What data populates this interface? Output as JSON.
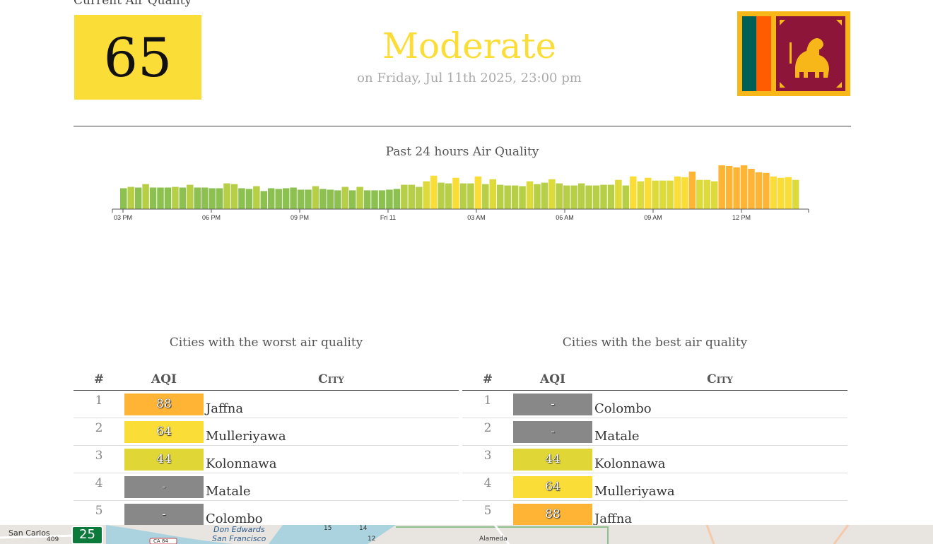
{
  "header": {
    "label": "Current Air Quality",
    "aqi": "65",
    "aqi_color": "#fbdd37",
    "status": "Moderate",
    "status_color": "#fbdd37",
    "date": "on Friday, Jul 11th 2025, 23:00 pm"
  },
  "chart_data": {
    "type": "bar",
    "title": "Past 24 hours Air Quality",
    "x_tick_labels": [
      "03 PM",
      "06 PM",
      "09 PM",
      "Fri 11",
      "03 AM",
      "06 AM",
      "09 AM",
      "12 PM"
    ],
    "values": [
      30,
      32,
      31,
      36,
      31,
      31,
      31,
      32,
      31,
      35,
      31,
      31,
      30,
      30,
      37,
      36,
      30,
      29,
      33,
      26,
      30,
      29,
      30,
      31,
      28,
      28,
      33,
      29,
      28,
      27,
      32,
      27,
      32,
      27,
      27,
      27,
      28,
      29,
      35,
      35,
      32,
      40,
      48,
      38,
      37,
      45,
      37,
      37,
      47,
      36,
      43,
      35,
      34,
      34,
      33,
      40,
      36,
      38,
      43,
      37,
      34,
      34,
      37,
      34,
      34,
      35,
      35,
      42,
      34,
      47,
      40,
      45,
      41,
      41,
      41,
      47,
      46,
      54,
      42,
      42,
      40,
      63,
      62,
      60,
      63,
      58,
      53,
      52,
      47,
      45,
      46,
      42
    ],
    "bar_colors": {
      "good": "#8cc152",
      "green_yellow": "#b7cf47",
      "yellow_green": "#dcdb3b",
      "moderate": "#fbdd37",
      "usg": "#ffb436"
    }
  },
  "worst": {
    "title": "Cities with the worst air quality",
    "headers": [
      "#",
      "AQI",
      "City"
    ],
    "rows": [
      {
        "rank": "1",
        "aqi": "88",
        "city": "Jaffna",
        "color": "#ffb436"
      },
      {
        "rank": "2",
        "aqi": "64",
        "city": "Mulleriyawa",
        "color": "#fbdd37"
      },
      {
        "rank": "3",
        "aqi": "44",
        "city": "Kolonnawa",
        "color": "#e0d636"
      },
      {
        "rank": "4",
        "aqi": "-",
        "city": "Matale",
        "color": "#888888"
      },
      {
        "rank": "5",
        "aqi": "-",
        "city": "Colombo",
        "color": "#888888"
      }
    ]
  },
  "best": {
    "title": "Cities with the best air quality",
    "headers": [
      "#",
      "AQI",
      "City"
    ],
    "rows": [
      {
        "rank": "1",
        "aqi": "-",
        "city": "Colombo",
        "color": "#888888"
      },
      {
        "rank": "2",
        "aqi": "-",
        "city": "Matale",
        "color": "#888888"
      },
      {
        "rank": "3",
        "aqi": "44",
        "city": "Kolonnawa",
        "color": "#e0d636"
      },
      {
        "rank": "4",
        "aqi": "64",
        "city": "Mulleriyawa",
        "color": "#fbdd37"
      },
      {
        "rank": "5",
        "aqi": "88",
        "city": "Jaffna",
        "color": "#ffb436"
      }
    ]
  },
  "map": {
    "labels": [
      "San Carlos",
      "25",
      "Don Edwards",
      "San Francisco",
      "Alameda",
      "CA 84",
      "409",
      "15",
      "14",
      "12"
    ]
  }
}
